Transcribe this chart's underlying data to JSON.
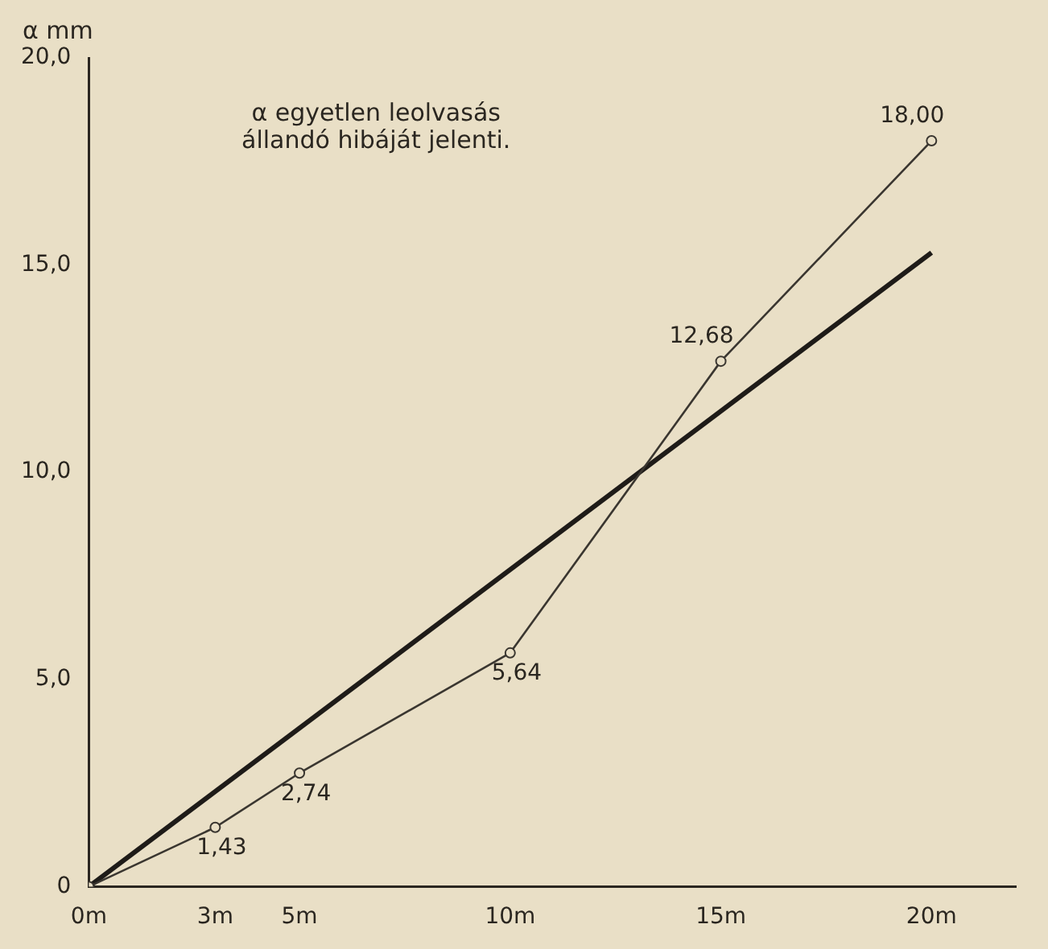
{
  "chart_data": {
    "type": "line",
    "ylabel": "α mm",
    "annotations": [
      "α egyetlen leolvasás\nállandó hibáját jelenti."
    ],
    "series": [
      {
        "color": "#3a3630",
        "x": [
          0,
          3,
          5,
          10,
          15,
          20
        ],
        "values": [
          0,
          1.43,
          2.74,
          5.64,
          12.68,
          18.0
        ],
        "value_labels": [
          null,
          "1,43",
          "2,74",
          "5,64",
          "12,68",
          "18,00"
        ],
        "marker": "circle"
      },
      {
        "color": "#1e1b18",
        "x": [
          0,
          20
        ],
        "values": [
          0,
          15.3
        ],
        "marker": "none"
      }
    ],
    "xlim": [
      0,
      22
    ],
    "xticks": [
      {
        "value": 0,
        "label": "0m"
      },
      {
        "value": 3,
        "label": "3m"
      },
      {
        "value": 5,
        "label": "5m"
      },
      {
        "value": 10,
        "label": "10m"
      },
      {
        "value": 15,
        "label": "15m"
      },
      {
        "value": 20,
        "label": "20m"
      }
    ],
    "ylim": [
      0,
      20
    ],
    "yticks": [
      {
        "value": 0,
        "label": "0"
      },
      {
        "value": 5,
        "label": "5,0"
      },
      {
        "value": 10,
        "label": "10,0"
      },
      {
        "value": 15,
        "label": "15,0"
      },
      {
        "value": 20,
        "label": "20,0"
      }
    ],
    "grid": false,
    "legend": false
  }
}
